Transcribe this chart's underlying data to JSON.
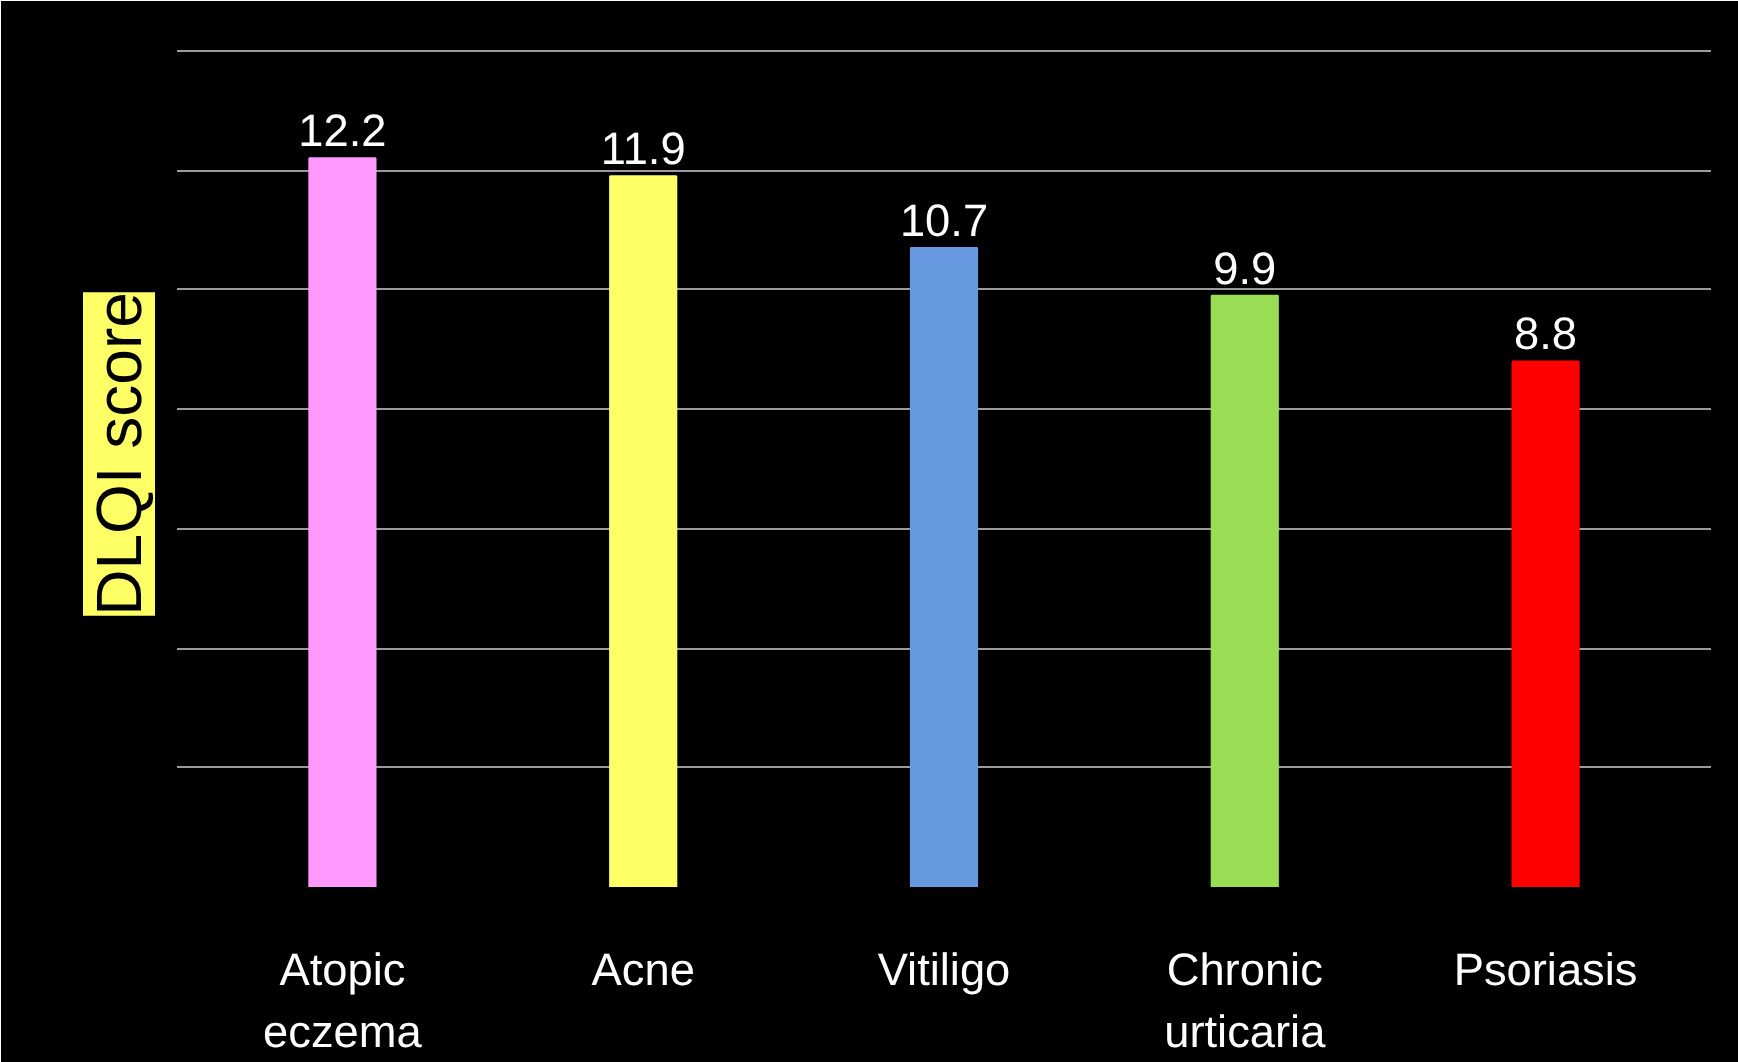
{
  "chart_data": {
    "type": "bar",
    "ylabel": "DLQI score",
    "categories": [
      "Atopic\neczema",
      "Acne",
      "Vitiligo",
      "Chronic\nurticaria",
      "Psoriasis"
    ],
    "values": [
      12.2,
      11.9,
      10.7,
      9.9,
      8.8
    ],
    "colors": [
      "#ff99ff",
      "#ffff66",
      "#6699e0",
      "#99dd55",
      "#ff0000"
    ],
    "ylim": [
      0,
      14.5
    ],
    "yticks": [
      {
        "value": 0,
        "label": null
      },
      {
        "value": 2,
        "label": null
      },
      {
        "value": 4,
        "label": null
      },
      {
        "value": 6,
        "label": null
      },
      {
        "value": 8,
        "label": null
      },
      {
        "value": 10,
        "label": null
      },
      {
        "value": 12,
        "label": null
      },
      {
        "value": 14,
        "label": null
      }
    ],
    "grid": "y",
    "tick_labels": "x",
    "data_labels": true
  }
}
